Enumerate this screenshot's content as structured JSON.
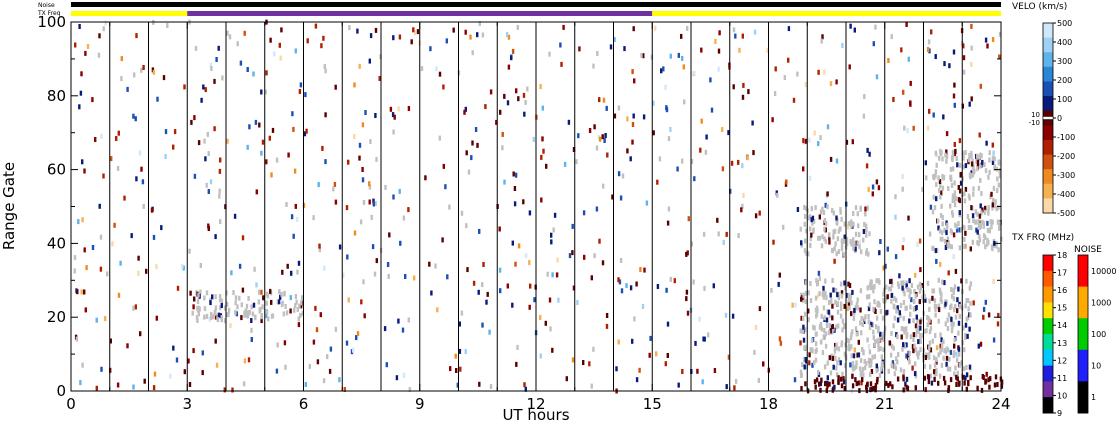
{
  "chart_data": {
    "type": "heatmap",
    "xlabel": "UT hours",
    "ylabel": "Range Gate",
    "xlim": [
      0,
      24
    ],
    "ylim": [
      0,
      100
    ],
    "x_ticks": [
      0,
      3,
      6,
      9,
      12,
      15,
      18,
      21,
      24
    ],
    "y_ticks": [
      0,
      20,
      40,
      60,
      80,
      100
    ],
    "scan_boundaries_ut": [
      1,
      2,
      3,
      4,
      5,
      6,
      7,
      8,
      9,
      10,
      11,
      12,
      13,
      14,
      15,
      16,
      17,
      18,
      19,
      20,
      21,
      22,
      23
    ],
    "header_bars": {
      "noise_label": "Noise",
      "txfreq_label": "TX Freq",
      "txfreq_segments": [
        {
          "from": 0,
          "to": 3,
          "color": "#ffff00"
        },
        {
          "from": 3,
          "to": 15,
          "color": "#7030a0"
        },
        {
          "from": 15,
          "to": 24,
          "color": "#ffff00"
        }
      ]
    },
    "velocity_colorbar": {
      "title": "VELO (km/s)",
      "ticks": [
        "500",
        "400",
        "300",
        "200",
        "100",
        "0",
        "-100",
        "-200",
        "-300",
        "-400",
        "-500"
      ],
      "gs_ticks": [
        "10",
        "-10"
      ],
      "colors": [
        "#cfe8fb",
        "#9fd0f5",
        "#5fb2ea",
        "#2a86d6",
        "#1a4fb5",
        "#0a1a7a",
        "#5a0000",
        "#8a0000",
        "#b02000",
        "#d05010",
        "#f08a20",
        "#f6b050",
        "#fbd8a8"
      ]
    },
    "txfreq_colorbar": {
      "title": "TX FRQ (MHz)",
      "ticks": [
        "18",
        "17",
        "16",
        "15",
        "14",
        "13",
        "12",
        "11",
        "10",
        "9"
      ],
      "colors": [
        "#ff0000",
        "#ff5a00",
        "#ff9900",
        "#ffe000",
        "#00cc00",
        "#00dd99",
        "#00c8ff",
        "#1e1edc",
        "#7030a0",
        "#000000"
      ]
    },
    "noise_colorbar": {
      "title": "NOISE",
      "ticks": [
        "10000",
        "1000",
        "100",
        "10",
        "1"
      ],
      "colors": [
        "#ff0000",
        "#ffaa00",
        "#00cc00",
        "#2020ff",
        "#000000"
      ]
    },
    "ground_scatter_color": "#c0c0c0",
    "echo_regions": [
      {
        "kind": "ground_scatter",
        "ut_from": 3.0,
        "ut_to": 6.0,
        "gate_from": 19,
        "gate_to": 27
      },
      {
        "kind": "ground_scatter",
        "ut_from": 18.8,
        "ut_to": 20.6,
        "gate_from": 37,
        "gate_to": 50
      },
      {
        "kind": "ground_scatter",
        "ut_from": 22.2,
        "ut_to": 24.0,
        "gate_from": 38,
        "gate_to": 65
      },
      {
        "kind": "ground_scatter",
        "ut_from": 18.8,
        "ut_to": 23.2,
        "gate_from": 4,
        "gate_to": 30
      },
      {
        "kind": "negative_velocity",
        "ut_from": 18.8,
        "ut_to": 24.0,
        "gate_from": 0,
        "gate_to": 4
      }
    ]
  }
}
